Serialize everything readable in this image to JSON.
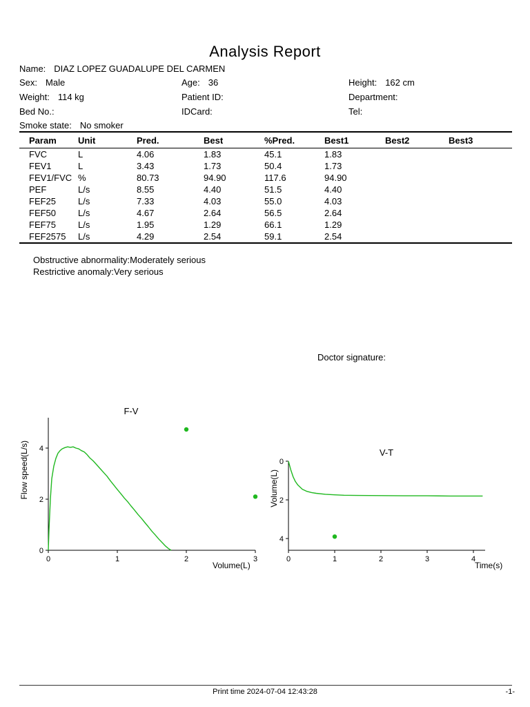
{
  "report": {
    "title": "Analysis Report",
    "patient": {
      "name_label": "Name:",
      "name": "DIAZ LOPEZ GUADALUPE DEL CARMEN",
      "sex_label": "Sex:",
      "sex": "Male",
      "age_label": "Age:",
      "age": "36",
      "height_label": "Height:",
      "height": "162 cm",
      "weight_label": "Weight:",
      "weight": "114 kg",
      "patient_id_label": "Patient ID:",
      "patient_id": "",
      "department_label": "Department:",
      "department": "",
      "bed_no_label": "Bed No.:",
      "bed_no": "",
      "idcard_label": "IDCard:",
      "idcard": "",
      "tel_label": "Tel:",
      "tel": "",
      "smoke_label": "Smoke state:",
      "smoke": "No smoker"
    },
    "table": {
      "headers": [
        "Param",
        "Unit",
        "Pred.",
        "Best",
        "%Pred.",
        "Best1",
        "Best2",
        "Best3"
      ],
      "rows": [
        [
          "FVC",
          "L",
          "4.06",
          "1.83",
          "45.1",
          "1.83",
          "",
          ""
        ],
        [
          "FEV1",
          "L",
          "3.43",
          "1.73",
          "50.4",
          "1.73",
          "",
          ""
        ],
        [
          "FEV1/FVC",
          "%",
          "80.73",
          "94.90",
          "117.6",
          "94.90",
          "",
          ""
        ],
        [
          "PEF",
          "L/s",
          "8.55",
          "4.40",
          "51.5",
          "4.40",
          "",
          ""
        ],
        [
          "FEF25",
          "L/s",
          "7.33",
          "4.03",
          "55.0",
          "4.03",
          "",
          ""
        ],
        [
          "FEF50",
          "L/s",
          "4.67",
          "2.64",
          "56.5",
          "2.64",
          "",
          ""
        ],
        [
          "FEF75",
          "L/s",
          "1.95",
          "1.29",
          "66.1",
          "1.29",
          "",
          ""
        ],
        [
          "FEF2575",
          "L/s",
          "4.29",
          "2.54",
          "59.1",
          "2.54",
          "",
          ""
        ]
      ]
    },
    "findings": [
      "Obstructive abnormality:Moderately serious",
      "Restrictive anomaly:Very serious"
    ],
    "doctor_signature_label": "Doctor signature:",
    "footer": {
      "print_time": "Print time 2024-07-04 12:43:28",
      "page": "-1-"
    }
  },
  "colors": {
    "curve": "#1fb81f"
  },
  "chart_data": [
    {
      "type": "line",
      "title": "F-V",
      "xlabel": "Volume(L)",
      "ylabel": "Flow speed(L/s)",
      "xlim": [
        0,
        3
      ],
      "ylim": [
        0,
        5.3
      ],
      "xticks": [
        "0",
        "1",
        "2",
        "3"
      ],
      "yticks": [
        "0",
        "2",
        "4"
      ],
      "grid": false,
      "legend": false,
      "series": [
        {
          "name": "flow-volume-curve",
          "x": [
            0,
            0.01,
            0.03,
            0.05,
            0.08,
            0.11,
            0.14,
            0.17,
            0.2,
            0.24,
            0.28,
            0.32,
            0.36,
            0.4,
            0.44,
            0.48,
            0.52,
            0.56,
            0.6,
            0.65,
            0.7,
            0.75,
            0.8,
            0.85,
            0.9,
            0.95,
            1.0,
            1.05,
            1.1,
            1.15,
            1.2,
            1.25,
            1.3,
            1.35,
            1.4,
            1.45,
            1.5,
            1.55,
            1.6,
            1.65,
            1.7,
            1.74,
            1.78
          ],
          "y": [
            0,
            0.8,
            2.0,
            2.8,
            3.3,
            3.6,
            3.8,
            3.9,
            3.97,
            4.02,
            4.05,
            4.03,
            4.05,
            4.0,
            3.97,
            3.9,
            3.85,
            3.75,
            3.62,
            3.5,
            3.35,
            3.2,
            3.05,
            2.9,
            2.72,
            2.55,
            2.38,
            2.22,
            2.05,
            1.9,
            1.73,
            1.57,
            1.4,
            1.25,
            1.08,
            0.92,
            0.75,
            0.6,
            0.44,
            0.3,
            0.16,
            0.07,
            0
          ]
        }
      ],
      "points": [
        {
          "x": 2.0,
          "y": 4.73
        },
        {
          "x": 3.0,
          "y": 2.1
        }
      ]
    },
    {
      "type": "line",
      "title": "V-T",
      "xlabel": "Time(s)",
      "ylabel": "Volume(L)",
      "xlim": [
        0,
        4.35
      ],
      "ylim": [
        0,
        4.55
      ],
      "y_inverted": true,
      "xticks": [
        "0",
        "1",
        "2",
        "3",
        "4"
      ],
      "yticks": [
        "0",
        "2",
        "4"
      ],
      "grid": false,
      "legend": false,
      "series": [
        {
          "name": "volume-time-curve",
          "x": [
            0,
            0.05,
            0.1,
            0.15,
            0.2,
            0.3,
            0.4,
            0.5,
            0.6,
            0.8,
            1.0,
            1.2,
            1.5,
            2.0,
            2.5,
            3.0,
            3.5,
            4.0,
            4.2
          ],
          "y": [
            0,
            0.45,
            0.8,
            1.05,
            1.22,
            1.45,
            1.56,
            1.62,
            1.66,
            1.71,
            1.74,
            1.76,
            1.77,
            1.78,
            1.79,
            1.79,
            1.8,
            1.8,
            1.8
          ]
        }
      ],
      "points": [
        {
          "x": 1.0,
          "y": 3.9
        }
      ]
    }
  ]
}
